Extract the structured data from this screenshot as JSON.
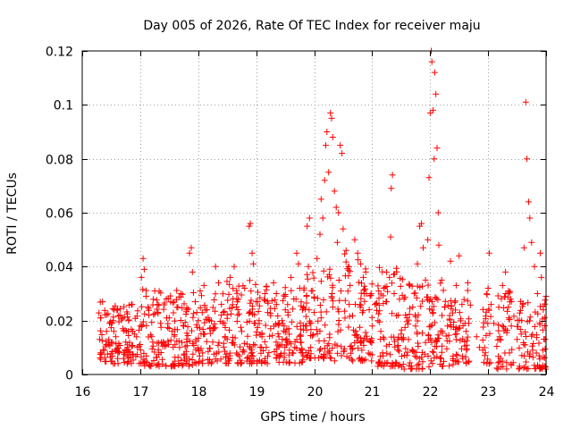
{
  "chart_data": {
    "type": "scatter",
    "title": "Day 005 of 2026, Rate Of TEC Index for receiver maju",
    "xlabel": "GPS time / hours",
    "ylabel": "ROTI / TECUs",
    "xlim": [
      16,
      24
    ],
    "ylim": [
      0,
      0.12
    ],
    "xticks": [
      16,
      17,
      18,
      19,
      20,
      21,
      22,
      23,
      24
    ],
    "yticks": [
      0,
      0.02,
      0.04,
      0.06,
      0.08,
      0.1,
      0.12
    ],
    "ytick_labels": [
      "0",
      "0.02",
      "0.04",
      "0.06",
      "0.08",
      "0.1",
      "0.12"
    ],
    "grid": true,
    "marker": "+",
    "color": "#ff0000",
    "series": [
      {
        "name": "ROTI",
        "points": [
          [
            16.3,
            0.013
          ],
          [
            16.32,
            0.021
          ],
          [
            16.35,
            0.027
          ],
          [
            16.38,
            0.009
          ],
          [
            16.42,
            0.016
          ],
          [
            16.45,
            0.011
          ],
          [
            16.5,
            0.019
          ],
          [
            16.55,
            0.024
          ],
          [
            16.58,
            0.014
          ],
          [
            16.62,
            0.008
          ],
          [
            16.65,
            0.022
          ],
          [
            16.7,
            0.017
          ],
          [
            16.75,
            0.012
          ],
          [
            16.8,
            0.02
          ],
          [
            16.85,
            0.026
          ],
          [
            16.9,
            0.015
          ],
          [
            16.95,
            0.01
          ],
          [
            17.0,
            0.018
          ],
          [
            17.02,
            0.036
          ],
          [
            17.05,
            0.043
          ],
          [
            17.07,
            0.039
          ],
          [
            17.1,
            0.029
          ],
          [
            17.15,
            0.022
          ],
          [
            17.2,
            0.014
          ],
          [
            17.25,
            0.031
          ],
          [
            17.3,
            0.026
          ],
          [
            17.35,
            0.019
          ],
          [
            17.4,
            0.012
          ],
          [
            17.45,
            0.028
          ],
          [
            17.5,
            0.021
          ],
          [
            17.55,
            0.016
          ],
          [
            17.6,
            0.011
          ],
          [
            17.65,
            0.025
          ],
          [
            17.7,
            0.03
          ],
          [
            17.75,
            0.018
          ],
          [
            17.8,
            0.013
          ],
          [
            17.85,
            0.045
          ],
          [
            17.88,
            0.047
          ],
          [
            17.9,
            0.038
          ],
          [
            17.95,
            0.027
          ],
          [
            18.0,
            0.02
          ],
          [
            18.05,
            0.015
          ],
          [
            18.1,
            0.033
          ],
          [
            18.15,
            0.024
          ],
          [
            18.2,
            0.017
          ],
          [
            18.25,
            0.012
          ],
          [
            18.3,
            0.04
          ],
          [
            18.35,
            0.034
          ],
          [
            18.4,
            0.026
          ],
          [
            18.45,
            0.019
          ],
          [
            18.5,
            0.013
          ],
          [
            18.55,
            0.036
          ],
          [
            18.6,
            0.028
          ],
          [
            18.62,
            0.04
          ],
          [
            18.68,
            0.022
          ],
          [
            18.75,
            0.016
          ],
          [
            18.8,
            0.032
          ],
          [
            18.88,
            0.055
          ],
          [
            18.9,
            0.056
          ],
          [
            18.93,
            0.045
          ],
          [
            18.95,
            0.041
          ],
          [
            19.0,
            0.027
          ],
          [
            19.05,
            0.02
          ],
          [
            19.1,
            0.014
          ],
          [
            19.15,
            0.03
          ],
          [
            19.2,
            0.023
          ],
          [
            19.25,
            0.017
          ],
          [
            19.3,
            0.034
          ],
          [
            19.35,
            0.026
          ],
          [
            19.4,
            0.019
          ],
          [
            19.45,
            0.013
          ],
          [
            19.5,
            0.029
          ],
          [
            19.55,
            0.022
          ],
          [
            19.6,
            0.036
          ],
          [
            19.65,
            0.028
          ],
          [
            19.7,
            0.045
          ],
          [
            19.73,
            0.041
          ],
          [
            19.75,
            0.032
          ],
          [
            19.8,
            0.024
          ],
          [
            19.85,
            0.018
          ],
          [
            19.88,
            0.055
          ],
          [
            19.9,
            0.04
          ],
          [
            19.92,
            0.058
          ],
          [
            19.95,
            0.031
          ],
          [
            20.0,
            0.023
          ],
          [
            20.05,
            0.043
          ],
          [
            20.1,
            0.052
          ],
          [
            20.12,
            0.065
          ],
          [
            20.15,
            0.058
          ],
          [
            20.18,
            0.072
          ],
          [
            20.2,
            0.085
          ],
          [
            20.22,
            0.09
          ],
          [
            20.25,
            0.075
          ],
          [
            20.28,
            0.097
          ],
          [
            20.3,
            0.095
          ],
          [
            20.32,
            0.088
          ],
          [
            20.35,
            0.068
          ],
          [
            20.38,
            0.062
          ],
          [
            20.4,
            0.049
          ],
          [
            20.42,
            0.06
          ],
          [
            20.45,
            0.085
          ],
          [
            20.48,
            0.082
          ],
          [
            20.5,
            0.054
          ],
          [
            20.55,
            0.046
          ],
          [
            20.6,
            0.04
          ],
          [
            20.62,
            0.033
          ],
          [
            20.7,
            0.05
          ],
          [
            20.75,
            0.045
          ],
          [
            20.8,
            0.041
          ],
          [
            20.85,
            0.036
          ],
          [
            20.9,
            0.03
          ],
          [
            20.95,
            0.024
          ],
          [
            21.0,
            0.018
          ],
          [
            21.05,
            0.026
          ],
          [
            21.1,
            0.02
          ],
          [
            21.15,
            0.016
          ],
          [
            21.2,
            0.032
          ],
          [
            21.25,
            0.027
          ],
          [
            21.3,
            0.036
          ],
          [
            21.32,
            0.051
          ],
          [
            21.35,
            0.074
          ],
          [
            21.33,
            0.069
          ],
          [
            21.38,
            0.03
          ],
          [
            21.45,
            0.022
          ],
          [
            21.5,
            0.015
          ],
          [
            21.55,
            0.028
          ],
          [
            21.6,
            0.021
          ],
          [
            21.65,
            0.033
          ],
          [
            21.7,
            0.025
          ],
          [
            21.75,
            0.018
          ],
          [
            21.78,
            0.041
          ],
          [
            21.82,
            0.055
          ],
          [
            21.85,
            0.056
          ],
          [
            21.88,
            0.047
          ],
          [
            21.92,
            0.035
          ],
          [
            21.96,
            0.05
          ],
          [
            21.98,
            0.073
          ],
          [
            22.0,
            0.097
          ],
          [
            22.02,
            0.12
          ],
          [
            22.03,
            0.116
          ],
          [
            22.05,
            0.098
          ],
          [
            22.07,
            0.08
          ],
          [
            22.08,
            0.112
          ],
          [
            22.1,
            0.104
          ],
          [
            22.12,
            0.084
          ],
          [
            22.14,
            0.06
          ],
          [
            22.15,
            0.048
          ],
          [
            22.2,
            0.035
          ],
          [
            22.25,
            0.025
          ],
          [
            22.3,
            0.018
          ],
          [
            22.35,
            0.042
          ],
          [
            22.45,
            0.033
          ],
          [
            22.5,
            0.044
          ],
          [
            22.55,
            0.026
          ],
          [
            22.6,
            0.019
          ],
          [
            22.65,
            0.034
          ],
          [
            22.8,
            0.014
          ],
          [
            22.85,
            0.01
          ],
          [
            23.0,
            0.032
          ],
          [
            23.02,
            0.045
          ],
          [
            23.05,
            0.026
          ],
          [
            23.1,
            0.019
          ],
          [
            23.2,
            0.014
          ],
          [
            23.25,
            0.033
          ],
          [
            23.3,
            0.038
          ],
          [
            23.35,
            0.025
          ],
          [
            23.4,
            0.018
          ],
          [
            23.5,
            0.013
          ],
          [
            23.6,
            0.026
          ],
          [
            23.62,
            0.047
          ],
          [
            23.65,
            0.101
          ],
          [
            23.67,
            0.08
          ],
          [
            23.7,
            0.064
          ],
          [
            23.72,
            0.058
          ],
          [
            23.75,
            0.049
          ],
          [
            23.8,
            0.04
          ],
          [
            23.85,
            0.03
          ],
          [
            23.9,
            0.045
          ],
          [
            23.92,
            0.036
          ],
          [
            23.95,
            0.024
          ],
          [
            24.0,
            0.029
          ]
        ],
        "bands": [
          {
            "x": [
              16.28,
              16.33
            ],
            "y": [
              0.004,
              0.027
            ]
          },
          {
            "x": [
              16.33,
              17.0
            ],
            "y": [
              0.004,
              0.026
            ]
          },
          {
            "x": [
              17.0,
              18.0
            ],
            "y": [
              0.003,
              0.032
            ]
          },
          {
            "x": [
              18.0,
              19.0
            ],
            "y": [
              0.004,
              0.035
            ]
          },
          {
            "x": [
              19.0,
              19.85
            ],
            "y": [
              0.004,
              0.034
            ]
          },
          {
            "x": [
              19.85,
              20.35
            ],
            "y": [
              0.006,
              0.04
            ]
          },
          {
            "x": [
              20.35,
              21.0
            ],
            "y": [
              0.005,
              0.045
            ]
          },
          {
            "x": [
              21.05,
              21.5
            ],
            "y": [
              0.003,
              0.04
            ]
          },
          {
            "x": [
              21.5,
              22.0
            ],
            "y": [
              0.002,
              0.036
            ]
          },
          {
            "x": [
              22.0,
              22.4
            ],
            "y": [
              0.003,
              0.034
            ]
          },
          {
            "x": [
              22.4,
              22.7
            ],
            "y": [
              0.004,
              0.033
            ]
          },
          {
            "x": [
              22.9,
              23.05
            ],
            "y": [
              0.004,
              0.03
            ]
          },
          {
            "x": [
              23.15,
              23.45
            ],
            "y": [
              0.002,
              0.031
            ]
          },
          {
            "x": [
              23.5,
              24.0
            ],
            "y": [
              0.002,
              0.028
            ]
          }
        ]
      }
    ]
  }
}
